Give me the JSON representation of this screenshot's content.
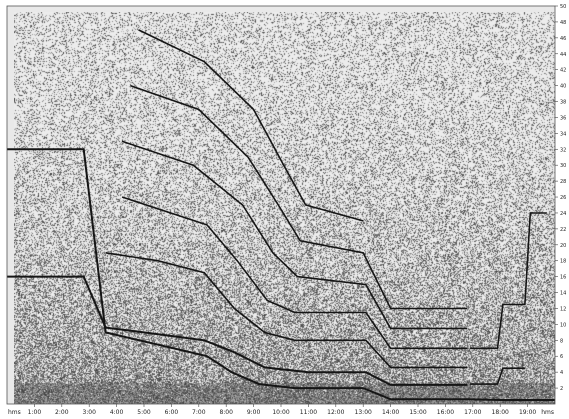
{
  "chart_data": {
    "type": "line",
    "title": "",
    "xlabel": "",
    "ylabel": "",
    "grid": false,
    "x_unit_label": "hms",
    "x_ticks": [
      "1:00",
      "2:00",
      "3:00",
      "4:00",
      "5:00",
      "6:00",
      "7:00",
      "8:00",
      "9:00",
      "10:00",
      "11:00",
      "12:00",
      "13:00",
      "14:00",
      "15:00",
      "16:00",
      "17:00",
      "18:00",
      "19:00"
    ],
    "y_ticks": [
      "2",
      "4",
      "6",
      "8",
      "10",
      "12",
      "14",
      "16",
      "18",
      "20",
      "22",
      "24",
      "26",
      "28",
      "30",
      "32",
      "34",
      "36",
      "38",
      "40",
      "42",
      "44",
      "46",
      "48",
      "50"
    ],
    "xlim": [
      0,
      20
    ],
    "ylim": [
      0,
      50
    ],
    "colors": {
      "background": "#e9e9e9",
      "noise": "#3a3a3a",
      "trace": "#151515"
    },
    "series": [
      {
        "points": [
          [
            0,
            32
          ],
          [
            2.8,
            32
          ],
          [
            3.6,
            9
          ],
          [
            7.3,
            6
          ],
          [
            8.2,
            4
          ],
          [
            9.2,
            2.5
          ],
          [
            10.5,
            2
          ],
          [
            13,
            2
          ],
          [
            14,
            0.6
          ],
          [
            16.8,
            0.6
          ],
          [
            18,
            0.5
          ],
          [
            20,
            0.5
          ]
        ]
      },
      {
        "points": [
          [
            0,
            16
          ],
          [
            2.8,
            16
          ],
          [
            3.6,
            9.6
          ],
          [
            5,
            9
          ],
          [
            7.2,
            8
          ],
          [
            8.3,
            6.5
          ],
          [
            9.4,
            4.6
          ],
          [
            11,
            4
          ],
          [
            13.1,
            4
          ],
          [
            14,
            2.4
          ],
          [
            16.8,
            2.4
          ]
        ]
      },
      {
        "points": [
          [
            3.6,
            19
          ],
          [
            5.5,
            18
          ],
          [
            7.2,
            16.5
          ],
          [
            8.3,
            12
          ],
          [
            9.4,
            9
          ],
          [
            10.5,
            8
          ],
          [
            13.1,
            8
          ],
          [
            14,
            4.6
          ],
          [
            16.8,
            4.6
          ]
        ]
      },
      {
        "points": [
          [
            4.2,
            26
          ],
          [
            7.3,
            22.5
          ],
          [
            8.4,
            18
          ],
          [
            9.5,
            13
          ],
          [
            10.5,
            11.5
          ],
          [
            13.1,
            11.5
          ],
          [
            14,
            7
          ],
          [
            16.8,
            7
          ]
        ]
      },
      {
        "points": [
          [
            4.2,
            33
          ],
          [
            6.8,
            30
          ],
          [
            8.6,
            25
          ],
          [
            9.7,
            19
          ],
          [
            10.6,
            16
          ],
          [
            13.1,
            15
          ],
          [
            14,
            9.5
          ],
          [
            16.8,
            9.5
          ]
        ]
      },
      {
        "points": [
          [
            4.5,
            40
          ],
          [
            7,
            37
          ],
          [
            8.8,
            31
          ],
          [
            9.9,
            25
          ],
          [
            10.7,
            20.5
          ],
          [
            13,
            19
          ],
          [
            14,
            12
          ],
          [
            16.8,
            12
          ]
        ]
      },
      {
        "points": [
          [
            4.8,
            47
          ],
          [
            7.2,
            43
          ],
          [
            9,
            37
          ],
          [
            10.1,
            30
          ],
          [
            10.9,
            25
          ],
          [
            13,
            23
          ]
        ]
      },
      {
        "points": [
          [
            16.9,
            7
          ],
          [
            17.9,
            7
          ],
          [
            18.1,
            12.5
          ],
          [
            18.9,
            12.5
          ],
          [
            19.1,
            24
          ],
          [
            19.7,
            24
          ]
        ]
      },
      {
        "points": [
          [
            16.9,
            2.5
          ],
          [
            17.9,
            2.5
          ],
          [
            18.1,
            4.5
          ],
          [
            18.9,
            4.5
          ]
        ]
      }
    ]
  }
}
